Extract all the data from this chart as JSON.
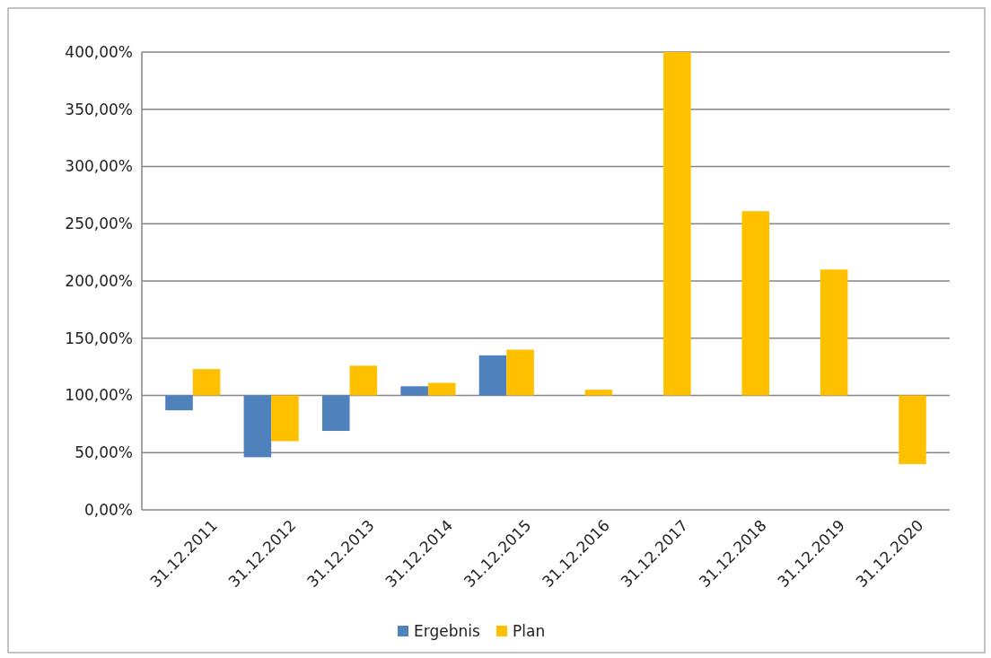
{
  "chart_data": {
    "type": "bar",
    "categories": [
      "31.12.2011",
      "31.12.2012",
      "31.12.2013",
      "31.12.2014",
      "31.12.2015",
      "31.12.2016",
      "31.12.2017",
      "31.12.2018",
      "31.12.2019",
      "31.12.2020"
    ],
    "series": [
      {
        "name": "Ergebnis",
        "color": "#4f81bd",
        "base": [
          100,
          100,
          100,
          100,
          100,
          null,
          null,
          null,
          null,
          null
        ],
        "values": [
          -13,
          -54,
          -31,
          8,
          35,
          null,
          null,
          null,
          null,
          null
        ]
      },
      {
        "name": "Plan",
        "color": "#ffc000",
        "base": [
          100,
          100,
          100,
          100,
          100,
          100,
          100,
          100,
          100,
          100
        ],
        "values": [
          23,
          -40,
          26,
          11,
          40,
          5,
          300,
          161,
          110,
          -60
        ]
      }
    ],
    "ylim": [
      0,
      400
    ],
    "yticks": [
      {
        "value": 0,
        "label": "0,00%"
      },
      {
        "value": 50,
        "label": "50,00%"
      },
      {
        "value": 100,
        "label": "100,00%"
      },
      {
        "value": 150,
        "label": "150,00%"
      },
      {
        "value": 200,
        "label": "200,00%"
      },
      {
        "value": 250,
        "label": "250,00%"
      },
      {
        "value": 300,
        "label": "300,00%"
      },
      {
        "value": 350,
        "label": "350,00%"
      },
      {
        "value": 400,
        "label": "400,00%"
      }
    ],
    "grid": "y",
    "legend": "bottom"
  }
}
